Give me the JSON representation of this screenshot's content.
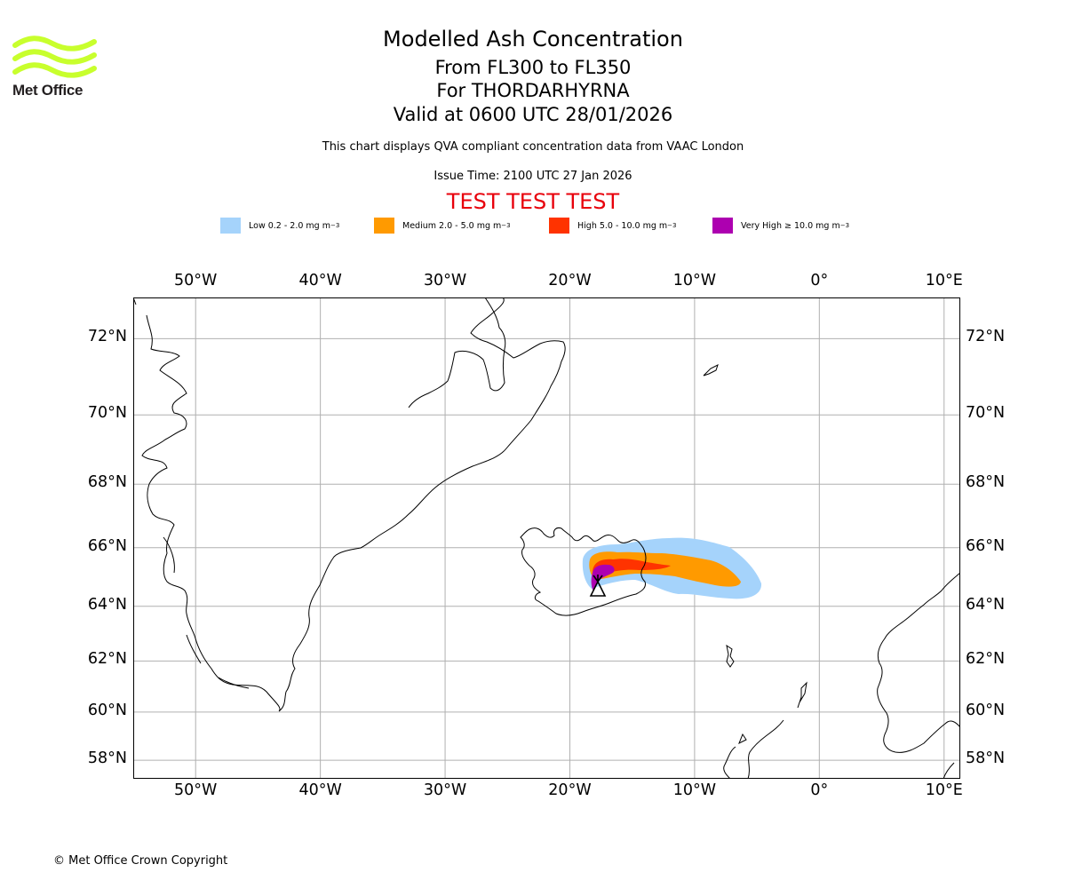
{
  "logo": {
    "text": "Met Office",
    "color": "#c8ff2d",
    "icon": "met-office-waves-icon"
  },
  "header": {
    "title": "Modelled Ash Concentration",
    "flight_levels": "From FL300 to FL350",
    "volcano": "For THORDARHYRNA",
    "valid_time": "Valid at 0600 UTC 28/01/2026",
    "description": "This chart displays QVA compliant concentration data from VAAC London",
    "issue_time": "Issue Time: 2100 UTC 27 Jan 2026",
    "test_banner": "TEST TEST TEST",
    "test_color": "#e8000b"
  },
  "legend": [
    {
      "label": "Low 0.2 - 2.0 mg m",
      "unit_exp": "−3",
      "color": "#a5d3fb"
    },
    {
      "label": "Medium 2.0 - 5.0 mg m",
      "unit_exp": "−3",
      "color": "#ff9a00"
    },
    {
      "label": "High 5.0 - 10.0 mg m",
      "unit_exp": "−3",
      "color": "#ff3300"
    },
    {
      "label": "Very High  ≥  10.0 mg m",
      "unit_exp": "−3",
      "color": "#ad00b0"
    }
  ],
  "map": {
    "lon_range": [
      -55,
      11.3
    ],
    "lat_range": [
      57.2,
      73
    ],
    "lon_ticks": [
      {
        "value": -50,
        "label": "50°W"
      },
      {
        "value": -40,
        "label": "40°W"
      },
      {
        "value": -30,
        "label": "30°W"
      },
      {
        "value": -20,
        "label": "20°W"
      },
      {
        "value": -10,
        "label": "10°W"
      },
      {
        "value": 0,
        "label": "0°"
      },
      {
        "value": 10,
        "label": "10°E"
      }
    ],
    "lat_ticks": [
      {
        "value": 72,
        "label": "72°N"
      },
      {
        "value": 70,
        "label": "70°N"
      },
      {
        "value": 68,
        "label": "68°N"
      },
      {
        "value": 66,
        "label": "66°N"
      },
      {
        "value": 64,
        "label": "64°N"
      },
      {
        "value": 62,
        "label": "62°N"
      },
      {
        "value": 60,
        "label": "60°N"
      },
      {
        "value": 58,
        "label": "58°N"
      }
    ],
    "volcano_symbol": "volcano-triangle-icon",
    "volcano_location": {
      "lon": -17.6,
      "lat": 64.3
    }
  },
  "footer": {
    "copyright": "© Met Office Crown Copyright"
  }
}
